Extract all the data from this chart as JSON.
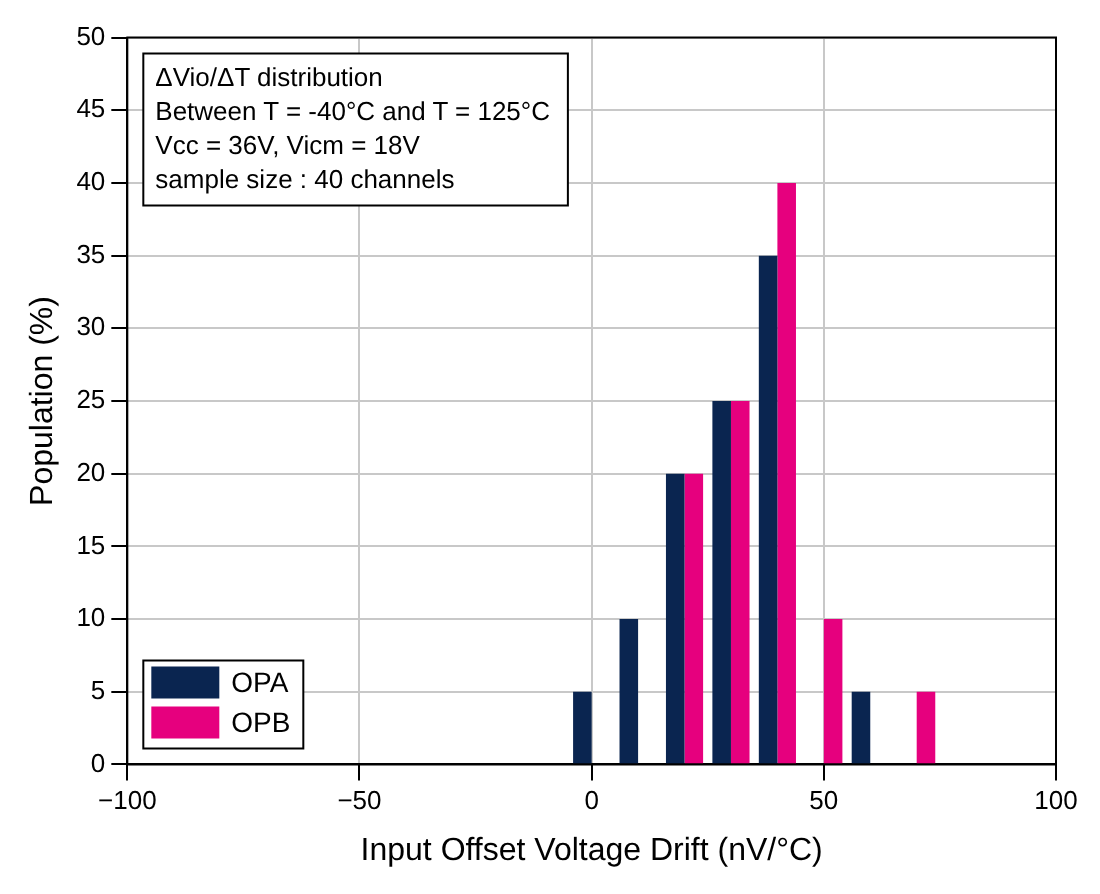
{
  "chart_data": {
    "type": "bar",
    "xlabel": "Input Offset Voltage Drift (nV/°C)",
    "ylabel": "Population (%)",
    "x": [
      0,
      10,
      20,
      30,
      40,
      50,
      60,
      70
    ],
    "series": [
      {
        "name": "OPA",
        "color": "#0a2550",
        "values": [
          5,
          10,
          20,
          25,
          35,
          null,
          5,
          null
        ]
      },
      {
        "name": "OPB",
        "color": "#e6007e",
        "values": [
          null,
          null,
          20,
          25,
          40,
          10,
          null,
          5
        ]
      }
    ],
    "xlim": [
      -100,
      100
    ],
    "xticks": [
      -100,
      -50,
      0,
      50,
      100
    ],
    "ylim": [
      0,
      50
    ],
    "yticks": [
      0,
      5,
      10,
      15,
      20,
      25,
      30,
      35,
      40,
      45,
      50
    ],
    "grid": true,
    "legend": "bottom left",
    "annotations": [
      "ΔVio/ΔT distribution",
      "Between T = -40°C and T = 125°C",
      "Vcc = 36V, Vicm = 18V",
      "sample size : 40 channels"
    ]
  }
}
